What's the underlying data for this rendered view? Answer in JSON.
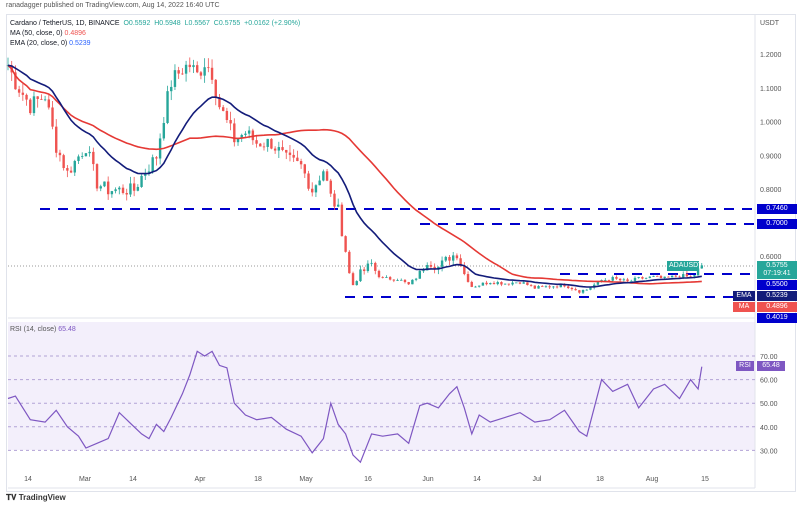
{
  "header": {
    "published": "ranadagger published on TradingView.com, Aug 14, 2022 16:40 UTC",
    "symbol": "Cardano / TetherUS, 1D, BINANCE",
    "open": "O0.5592",
    "high": "H0.5948",
    "low": "L0.5567",
    "close": "C0.5755",
    "change": "+0.0162 (+2.90%)",
    "ma_label": "MA (50, close, 0)",
    "ma_value": "0.4896",
    "ema_label": "EMA (20, close, 0)",
    "ema_value": "0.5239"
  },
  "colors": {
    "up": "#26a69a",
    "down": "#ef5350",
    "ema": "#131c7a",
    "ma": "#e53935",
    "level": "#0000cc",
    "rsi": "#7e57c2"
  },
  "price_axis": {
    "unit": "USDT",
    "ticks": [
      "1.2000",
      "1.1000",
      "1.0000",
      "0.9000",
      "0.8000",
      "0.6000"
    ]
  },
  "levels": [
    "0.7460",
    "0.7000",
    "0.5500",
    "0.4019"
  ],
  "badges": {
    "symbol": "ADAUSDT",
    "price": "0.5755",
    "countdown": "07:19:41",
    "ema": "EMA",
    "ema_value": "0.5239",
    "ma": "MA",
    "ma_value": "0.4896",
    "rsi": "RSI",
    "rsi_value": "65.48"
  },
  "rsi": {
    "label": "RSI (14, close)",
    "value": "65.48",
    "ticks": [
      "70.00",
      "60.00",
      "50.00",
      "40.00",
      "30.00"
    ]
  },
  "time_axis": [
    "14",
    "Mar",
    "14",
    "Apr",
    "18",
    "May",
    "16",
    "Jun",
    "14",
    "Jul",
    "18",
    "Aug",
    "15"
  ],
  "footer": {
    "logo": "TradingView"
  },
  "chart_data": {
    "type": "candlestick",
    "ylabel": "USDT",
    "ylim": [
      0.38,
      1.25
    ],
    "closes": [
      [
        "2022-02-08",
        1.17
      ],
      [
        "2022-02-10",
        1.12
      ],
      [
        "2022-02-14",
        1.05
      ],
      [
        "2022-02-18",
        1.08
      ],
      [
        "2022-02-21",
        0.93
      ],
      [
        "2022-02-24",
        0.85
      ],
      [
        "2022-02-27",
        0.9
      ],
      [
        "2022-03-01",
        0.93
      ],
      [
        "2022-03-04",
        0.82
      ],
      [
        "2022-03-07",
        0.8
      ],
      [
        "2022-03-10",
        0.8
      ],
      [
        "2022-03-14",
        0.8
      ],
      [
        "2022-03-16",
        0.84
      ],
      [
        "2022-03-18",
        0.87
      ],
      [
        "2022-03-20",
        0.9
      ],
      [
        "2022-03-22",
        1.02
      ],
      [
        "2022-03-24",
        1.12
      ],
      [
        "2022-03-27",
        1.16
      ],
      [
        "2022-03-29",
        1.17
      ],
      [
        "2022-03-31",
        1.14
      ],
      [
        "2022-04-02",
        1.18
      ],
      [
        "2022-04-04",
        1.15
      ],
      [
        "2022-04-06",
        1.05
      ],
      [
        "2022-04-08",
        1.0
      ],
      [
        "2022-04-10",
        0.95
      ],
      [
        "2022-04-13",
        0.97
      ],
      [
        "2022-04-16",
        0.94
      ],
      [
        "2022-04-20",
        0.94
      ],
      [
        "2022-04-24",
        0.89
      ],
      [
        "2022-04-28",
        0.87
      ],
      [
        "2022-05-01",
        0.8
      ],
      [
        "2022-05-04",
        0.86
      ],
      [
        "2022-05-06",
        0.78
      ],
      [
        "2022-05-08",
        0.74
      ],
      [
        "2022-05-10",
        0.62
      ],
      [
        "2022-05-12",
        0.48
      ],
      [
        "2022-05-14",
        0.55
      ],
      [
        "2022-05-17",
        0.58
      ],
      [
        "2022-05-20",
        0.52
      ],
      [
        "2022-05-24",
        0.52
      ],
      [
        "2022-05-27",
        0.48
      ],
      [
        "2022-05-30",
        0.55
      ],
      [
        "2022-06-01",
        0.59
      ],
      [
        "2022-06-04",
        0.57
      ],
      [
        "2022-06-07",
        0.6
      ],
      [
        "2022-06-09",
        0.61
      ],
      [
        "2022-06-11",
        0.55
      ],
      [
        "2022-06-13",
        0.47
      ],
      [
        "2022-06-15",
        0.48
      ],
      [
        "2022-06-18",
        0.5
      ],
      [
        "2022-06-22",
        0.49
      ],
      [
        "2022-06-26",
        0.5
      ],
      [
        "2022-06-30",
        0.46
      ],
      [
        "2022-07-04",
        0.47
      ],
      [
        "2022-07-08",
        0.48
      ],
      [
        "2022-07-12",
        0.44
      ],
      [
        "2022-07-14",
        0.45
      ],
      [
        "2022-07-18",
        0.51
      ],
      [
        "2022-07-21",
        0.52
      ],
      [
        "2022-07-25",
        0.5
      ],
      [
        "2022-07-28",
        0.52
      ],
      [
        "2022-08-01",
        0.53
      ],
      [
        "2022-08-04",
        0.52
      ],
      [
        "2022-08-08",
        0.54
      ],
      [
        "2022-08-11",
        0.53
      ],
      [
        "2022-08-13",
        0.5593
      ],
      [
        "2022-08-14",
        0.5755
      ]
    ],
    "rsi": [
      [
        "2022-02-08",
        52
      ],
      [
        "2022-02-10",
        53
      ],
      [
        "2022-02-14",
        43
      ],
      [
        "2022-02-18",
        42
      ],
      [
        "2022-02-21",
        47
      ],
      [
        "2022-02-24",
        40
      ],
      [
        "2022-02-27",
        36
      ],
      [
        "2022-03-01",
        31
      ],
      [
        "2022-03-04",
        33
      ],
      [
        "2022-03-07",
        35
      ],
      [
        "2022-03-10",
        46
      ],
      [
        "2022-03-14",
        40
      ],
      [
        "2022-03-16",
        37
      ],
      [
        "2022-03-18",
        35
      ],
      [
        "2022-03-20",
        41
      ],
      [
        "2022-03-22",
        38
      ],
      [
        "2022-03-24",
        44
      ],
      [
        "2022-03-27",
        54
      ],
      [
        "2022-03-29",
        62
      ],
      [
        "2022-03-31",
        72
      ],
      [
        "2022-04-02",
        70
      ],
      [
        "2022-04-04",
        72
      ],
      [
        "2022-04-06",
        66
      ],
      [
        "2022-04-08",
        65
      ],
      [
        "2022-04-10",
        50
      ],
      [
        "2022-04-13",
        45
      ],
      [
        "2022-04-16",
        43
      ],
      [
        "2022-04-20",
        44
      ],
      [
        "2022-04-24",
        39
      ],
      [
        "2022-04-28",
        36
      ],
      [
        "2022-05-01",
        29
      ],
      [
        "2022-05-04",
        35
      ],
      [
        "2022-05-06",
        50
      ],
      [
        "2022-05-08",
        41
      ],
      [
        "2022-05-10",
        37
      ],
      [
        "2022-05-12",
        28
      ],
      [
        "2022-05-14",
        25
      ],
      [
        "2022-05-17",
        37
      ],
      [
        "2022-05-20",
        36
      ],
      [
        "2022-05-24",
        37
      ],
      [
        "2022-05-27",
        33
      ],
      [
        "2022-05-30",
        49
      ],
      [
        "2022-06-01",
        50
      ],
      [
        "2022-06-04",
        48
      ],
      [
        "2022-06-07",
        54
      ],
      [
        "2022-06-09",
        57
      ],
      [
        "2022-06-11",
        48
      ],
      [
        "2022-06-13",
        37
      ],
      [
        "2022-06-15",
        45
      ],
      [
        "2022-06-18",
        42
      ],
      [
        "2022-06-22",
        44
      ],
      [
        "2022-06-26",
        46
      ],
      [
        "2022-06-30",
        42
      ],
      [
        "2022-07-04",
        43
      ],
      [
        "2022-07-08",
        47
      ],
      [
        "2022-07-12",
        38
      ],
      [
        "2022-07-14",
        36
      ],
      [
        "2022-07-18",
        60
      ],
      [
        "2022-07-21",
        55
      ],
      [
        "2022-07-25",
        58
      ],
      [
        "2022-07-28",
        48
      ],
      [
        "2022-08-01",
        56
      ],
      [
        "2022-08-04",
        58
      ],
      [
        "2022-08-08",
        52
      ],
      [
        "2022-08-11",
        60
      ],
      [
        "2022-08-13",
        56
      ],
      [
        "2022-08-14",
        65.48
      ]
    ]
  }
}
